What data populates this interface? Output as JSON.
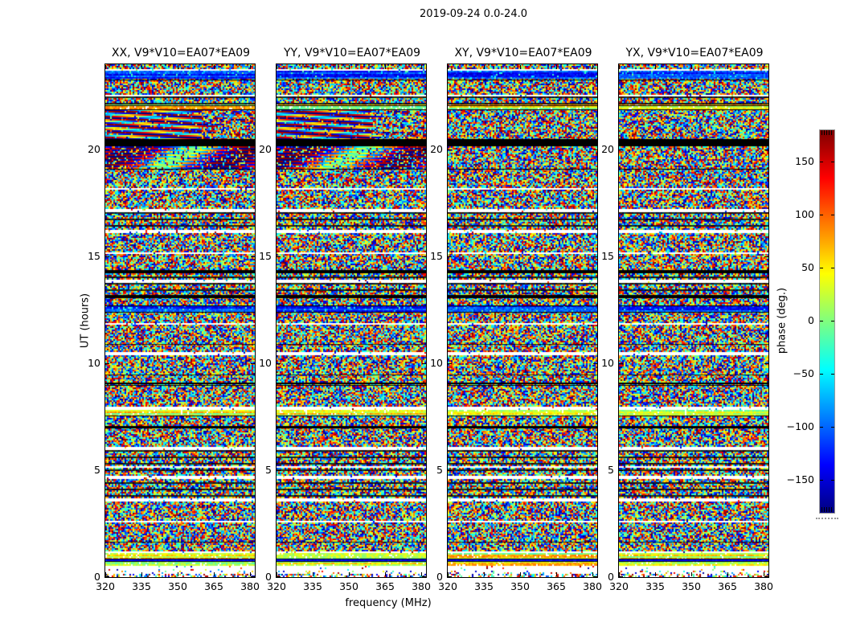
{
  "figure": {
    "suptitle": "2019-09-24 0.0-24.0",
    "background": "#ffffff"
  },
  "chart_data": {
    "type": "heatmap",
    "suptitle": "2019-09-24 0.0-24.0",
    "xlabel": "frequency (MHz)",
    "ylabel": "UT (hours)",
    "xlim": [
      320,
      382
    ],
    "ylim": [
      0,
      24
    ],
    "xticks": [
      320,
      335,
      350,
      365,
      380
    ],
    "xtick_labels": [
      "320",
      "335",
      "350",
      "365",
      "380"
    ],
    "yticks": [
      0,
      5,
      10,
      15,
      20
    ],
    "ytick_labels": [
      "0",
      "5",
      "10",
      "15",
      "20"
    ],
    "panels": [
      {
        "title": "XX, V9*V10=EA07*EA09",
        "pol": "XX",
        "has_fringes": true
      },
      {
        "title": "YY, V9*V10=EA07*EA09",
        "pol": "YY",
        "has_fringes": true
      },
      {
        "title": "XY, V9*V10=EA07*EA09",
        "pol": "XY",
        "has_fringes": false
      },
      {
        "title": "YX, V9*V10=EA07*EA09",
        "pol": "YX",
        "has_fringes": false
      }
    ],
    "colorbar": {
      "label": "phase (deg.)",
      "ticks": [
        150,
        100,
        50,
        0,
        -50,
        -100,
        -150
      ],
      "tick_labels": [
        "150",
        "100",
        "50",
        "0",
        "−50",
        "−100",
        "−150"
      ],
      "vmin": -180,
      "vmax": 180,
      "colormap": "jet"
    },
    "bands": [
      {
        "t0": 0.0,
        "t1": 0.3,
        "type": "sparse"
      },
      {
        "t0": 0.3,
        "t1": 0.55,
        "type": "white"
      },
      {
        "t0": 0.55,
        "t1": 0.75,
        "type": "cyan"
      },
      {
        "t0": 0.75,
        "t1": 0.85,
        "type": "blueline"
      },
      {
        "t0": 0.85,
        "t1": 1.1,
        "type": "cyan"
      },
      {
        "t0": 1.1,
        "t1": 1.2,
        "type": "white"
      },
      {
        "t0": 1.2,
        "t1": 2.55,
        "type": "noise"
      },
      {
        "t0": 2.55,
        "t1": 2.65,
        "type": "white"
      },
      {
        "t0": 2.65,
        "t1": 3.55,
        "type": "noise"
      },
      {
        "t0": 3.55,
        "t1": 3.68,
        "type": "white"
      },
      {
        "t0": 3.68,
        "t1": 4.6,
        "type": "dense"
      },
      {
        "t0": 4.6,
        "t1": 4.72,
        "type": "white"
      },
      {
        "t0": 4.72,
        "t1": 5.1,
        "type": "dense"
      },
      {
        "t0": 5.1,
        "t1": 5.22,
        "type": "white"
      },
      {
        "t0": 5.22,
        "t1": 5.95,
        "type": "dense"
      },
      {
        "t0": 5.95,
        "t1": 6.07,
        "type": "white"
      },
      {
        "t0": 6.07,
        "t1": 7.0,
        "type": "noise"
      },
      {
        "t0": 7.0,
        "t1": 7.08,
        "type": "blackline"
      },
      {
        "t0": 7.08,
        "t1": 7.55,
        "type": "noise"
      },
      {
        "t0": 7.55,
        "t1": 7.85,
        "type": "cyan"
      },
      {
        "t0": 7.85,
        "t1": 7.95,
        "type": "white"
      },
      {
        "t0": 7.95,
        "t1": 9.0,
        "type": "noise"
      },
      {
        "t0": 9.0,
        "t1": 9.08,
        "type": "blackline"
      },
      {
        "t0": 9.08,
        "t1": 10.4,
        "type": "noise"
      },
      {
        "t0": 10.4,
        "t1": 10.5,
        "type": "white"
      },
      {
        "t0": 10.5,
        "t1": 11.8,
        "type": "noise"
      },
      {
        "t0": 11.8,
        "t1": 11.9,
        "type": "white"
      },
      {
        "t0": 11.9,
        "t1": 12.4,
        "type": "noise"
      },
      {
        "t0": 12.4,
        "t1": 12.7,
        "type": "blue"
      },
      {
        "t0": 12.7,
        "t1": 13.1,
        "type": "noise"
      },
      {
        "t0": 13.1,
        "t1": 13.2,
        "type": "blackline"
      },
      {
        "t0": 13.2,
        "t1": 13.8,
        "type": "dense"
      },
      {
        "t0": 13.8,
        "t1": 13.92,
        "type": "white"
      },
      {
        "t0": 13.92,
        "t1": 14.25,
        "type": "dense"
      },
      {
        "t0": 14.25,
        "t1": 14.35,
        "type": "blackline"
      },
      {
        "t0": 14.35,
        "t1": 15.1,
        "type": "noise"
      },
      {
        "t0": 15.1,
        "t1": 15.22,
        "type": "white"
      },
      {
        "t0": 15.22,
        "t1": 16.1,
        "type": "noise"
      },
      {
        "t0": 16.1,
        "t1": 16.25,
        "type": "white"
      },
      {
        "t0": 16.25,
        "t1": 17.1,
        "type": "dense"
      },
      {
        "t0": 17.1,
        "t1": 17.2,
        "type": "white"
      },
      {
        "t0": 17.2,
        "t1": 18.1,
        "type": "noise"
      },
      {
        "t0": 18.1,
        "t1": 18.2,
        "type": "white"
      },
      {
        "t0": 18.2,
        "t1": 19.1,
        "type": "noise"
      },
      {
        "t0": 19.1,
        "t1": 20.2,
        "type": "fringe2"
      },
      {
        "t0": 20.2,
        "t1": 20.5,
        "type": "black"
      },
      {
        "t0": 20.5,
        "t1": 21.9,
        "type": "fringe"
      },
      {
        "t0": 21.9,
        "t1": 22.1,
        "type": "cyan"
      },
      {
        "t0": 22.1,
        "t1": 22.5,
        "type": "dense"
      },
      {
        "t0": 22.5,
        "t1": 22.6,
        "type": "white"
      },
      {
        "t0": 22.6,
        "t1": 23.3,
        "type": "noise"
      },
      {
        "t0": 23.3,
        "t1": 23.7,
        "type": "blue"
      },
      {
        "t0": 23.7,
        "t1": 23.78,
        "type": "white"
      },
      {
        "t0": 23.78,
        "t1": 24.0,
        "type": "noise"
      }
    ]
  },
  "colors": {
    "axis": "#000000",
    "text": "#000000",
    "colorbar_outline": "#999999",
    "background": "#ffffff"
  }
}
